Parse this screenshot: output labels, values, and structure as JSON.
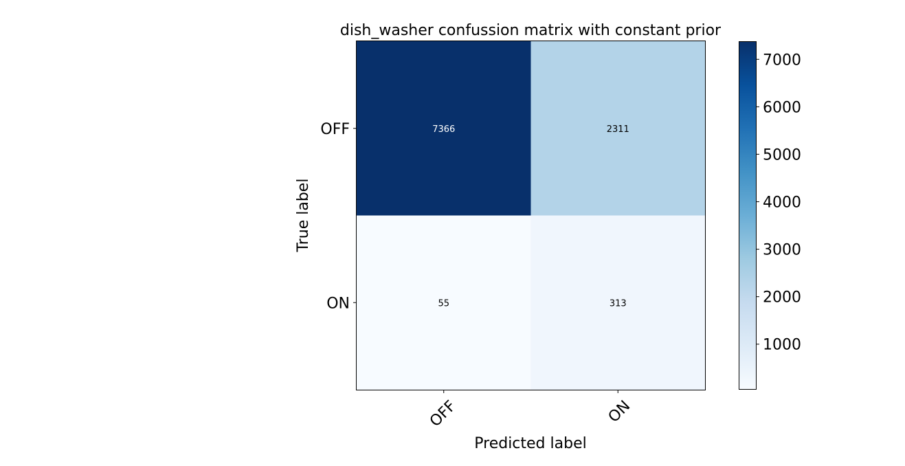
{
  "chart_data": {
    "type": "heatmap",
    "title": "dish_washer confussion matrix with constant prior",
    "xlabel": "Predicted label",
    "ylabel": "True label",
    "x_categories": [
      "OFF",
      "ON"
    ],
    "y_categories": [
      "OFF",
      "ON"
    ],
    "values": [
      [
        7366,
        2311
      ],
      [
        55,
        313
      ]
    ],
    "colormap": "Blues",
    "color_range": [
      55,
      7366
    ],
    "colorbar_ticks": [
      1000,
      2000,
      3000,
      4000,
      5000,
      6000,
      7000
    ],
    "colorbar_tick_labels": [
      "1000",
      "2000",
      "3000",
      "4000",
      "5000",
      "6000",
      "7000"
    ],
    "x_tick_rotation_deg": 45,
    "grid": false
  }
}
